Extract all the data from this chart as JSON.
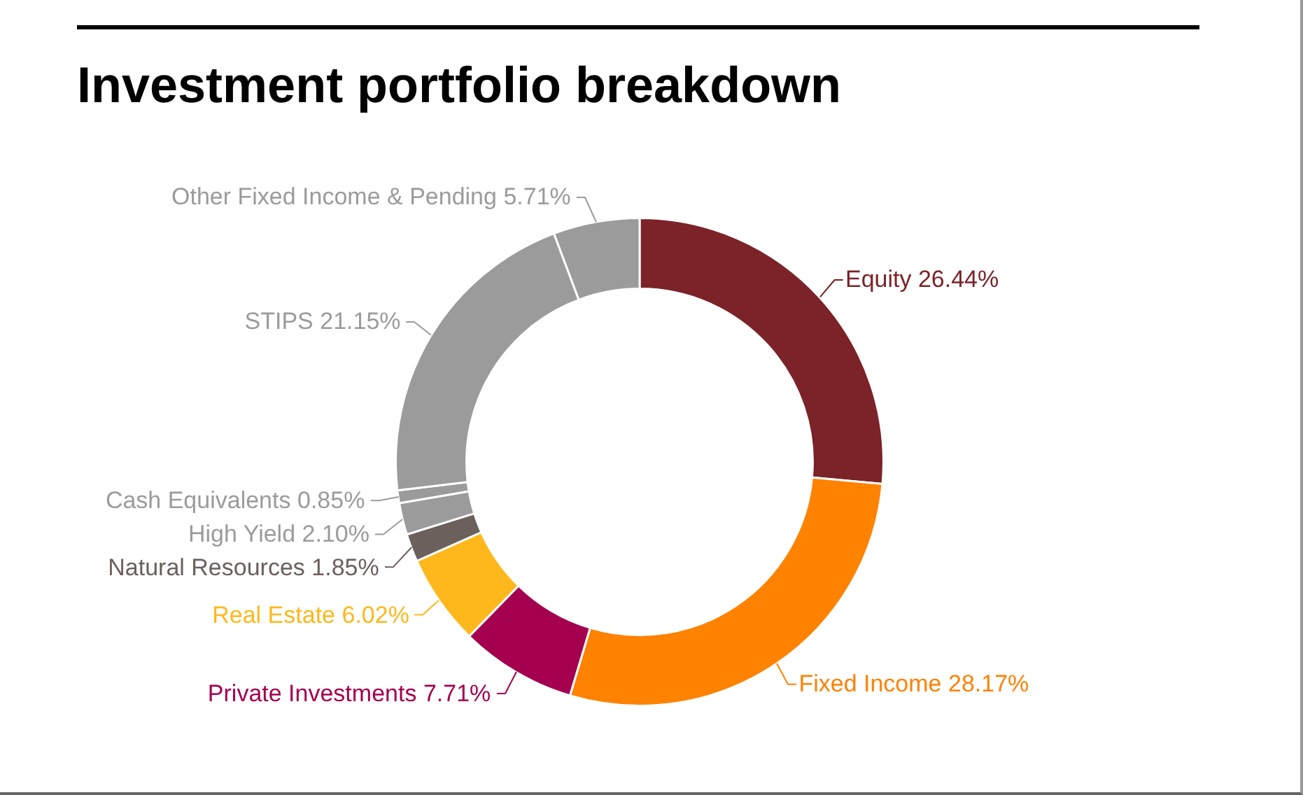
{
  "chart_data": {
    "type": "donut",
    "title": "Investment portfolio breakdown",
    "categories": [
      "Equity",
      "Fixed Income",
      "Private Investments",
      "Real Estate",
      "Natural Resources",
      "High Yield",
      "Cash Equivalents",
      "STIPS",
      "Other Fixed Income & Pending"
    ],
    "values": [
      26.44,
      28.17,
      7.71,
      6.02,
      1.85,
      2.1,
      0.85,
      21.15,
      5.71
    ],
    "value_labels": [
      "26.44%",
      "28.17%",
      "7.71%",
      "6.02%",
      "1.85%",
      "2.10%",
      "0.85%",
      "21.15%",
      "5.71%"
    ],
    "colors": [
      "#7b2328",
      "#ff8200",
      "#a5004f",
      "#ffb81c",
      "#6b605b",
      "#9b9b9b",
      "#9b9b9b",
      "#9b9b9b",
      "#9b9b9b"
    ],
    "legend": false
  }
}
